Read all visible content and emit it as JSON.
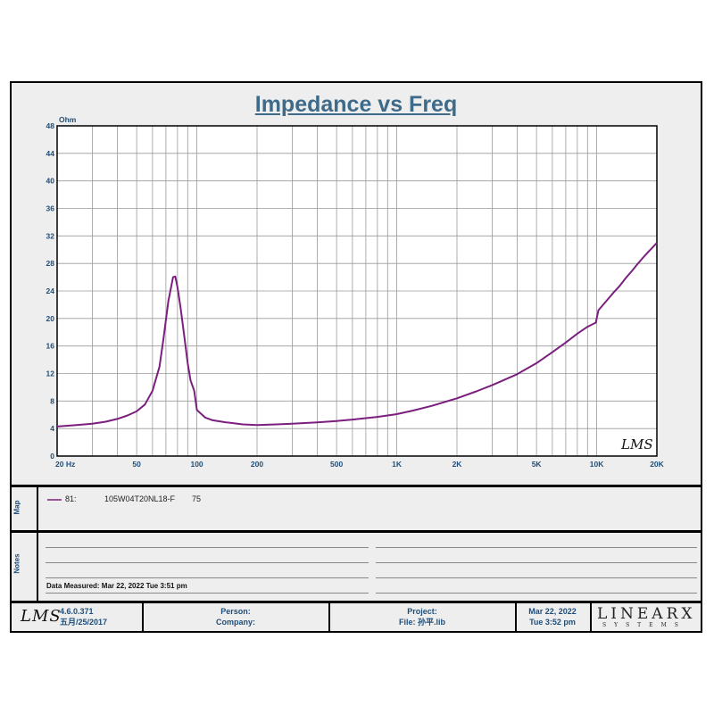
{
  "chart_data": {
    "type": "line",
    "title": "Impedance vs Freq",
    "ylabel": "Ohm",
    "xlabel": "",
    "x_scale": "log",
    "xlim": [
      20,
      20000
    ],
    "ylim": [
      0,
      48
    ],
    "y_ticks": [
      "0",
      "4",
      "8",
      "12",
      "16",
      "20",
      "24",
      "28",
      "32",
      "36",
      "40",
      "44",
      "48"
    ],
    "y_tick_values": [
      0,
      4,
      8,
      12,
      16,
      20,
      24,
      28,
      32,
      36,
      40,
      44,
      48
    ],
    "x_ticks": [
      "20  Hz",
      "50",
      "100",
      "200",
      "500",
      "1K",
      "2K",
      "5K",
      "10K",
      "20K"
    ],
    "x_tick_values": [
      20,
      50,
      100,
      200,
      500,
      1000,
      2000,
      5000,
      10000,
      20000
    ],
    "grid": true,
    "series": [
      {
        "name": "105W04T20NL18-F",
        "color": "#7b1f7f",
        "x": [
          20,
          25,
          30,
          35,
          40,
          45,
          50,
          55,
          60,
          65,
          68,
          72,
          76,
          78,
          80,
          83,
          86,
          90,
          93,
          97,
          100,
          110,
          120,
          140,
          170,
          200,
          250,
          300,
          400,
          500,
          600,
          800,
          950,
          1000,
          1200,
          1500,
          2000,
          2500,
          3000,
          4000,
          5000,
          6000,
          7000,
          8000,
          9000,
          9900,
          10200,
          11000,
          12000,
          13000,
          14000,
          15000,
          16000,
          17000,
          18000,
          19000,
          20000
        ],
        "y": [
          4.3,
          4.5,
          4.7,
          5.0,
          5.4,
          5.9,
          6.5,
          7.5,
          9.5,
          13.0,
          17.0,
          22.5,
          26.0,
          26.1,
          24.5,
          21.5,
          18.0,
          13.5,
          11.0,
          9.5,
          6.7,
          5.6,
          5.2,
          4.9,
          4.6,
          4.5,
          4.6,
          4.7,
          4.9,
          5.1,
          5.3,
          5.7,
          6.0,
          6.1,
          6.6,
          7.3,
          8.4,
          9.4,
          10.3,
          11.9,
          13.5,
          15.1,
          16.5,
          17.8,
          18.8,
          19.4,
          21.2,
          22.3,
          23.6,
          24.7,
          25.9,
          26.9,
          27.9,
          28.8,
          29.6,
          30.3,
          31.0
        ]
      }
    ]
  },
  "map": {
    "label": "Map",
    "entry_id": "81:",
    "entry_name": "105W04T20NL18-F",
    "entry_value": "75"
  },
  "notes": {
    "label": "Notes",
    "measured": "Data Measured: Mar 22, 2022  Tue  3:51 pm"
  },
  "footer": {
    "logo": "LMS",
    "version": "4.6.0.371",
    "version_date": "五月/25/2017",
    "person_label": "Person:",
    "company_label": "Company:",
    "project_label": "Project:",
    "file_label": "File: 孙平.lib",
    "date": "Mar 22, 2022",
    "time": "Tue  3:52 pm",
    "brand": "LINEARX",
    "brand_sub": "SYSTEMS"
  },
  "watermark": "LMS"
}
